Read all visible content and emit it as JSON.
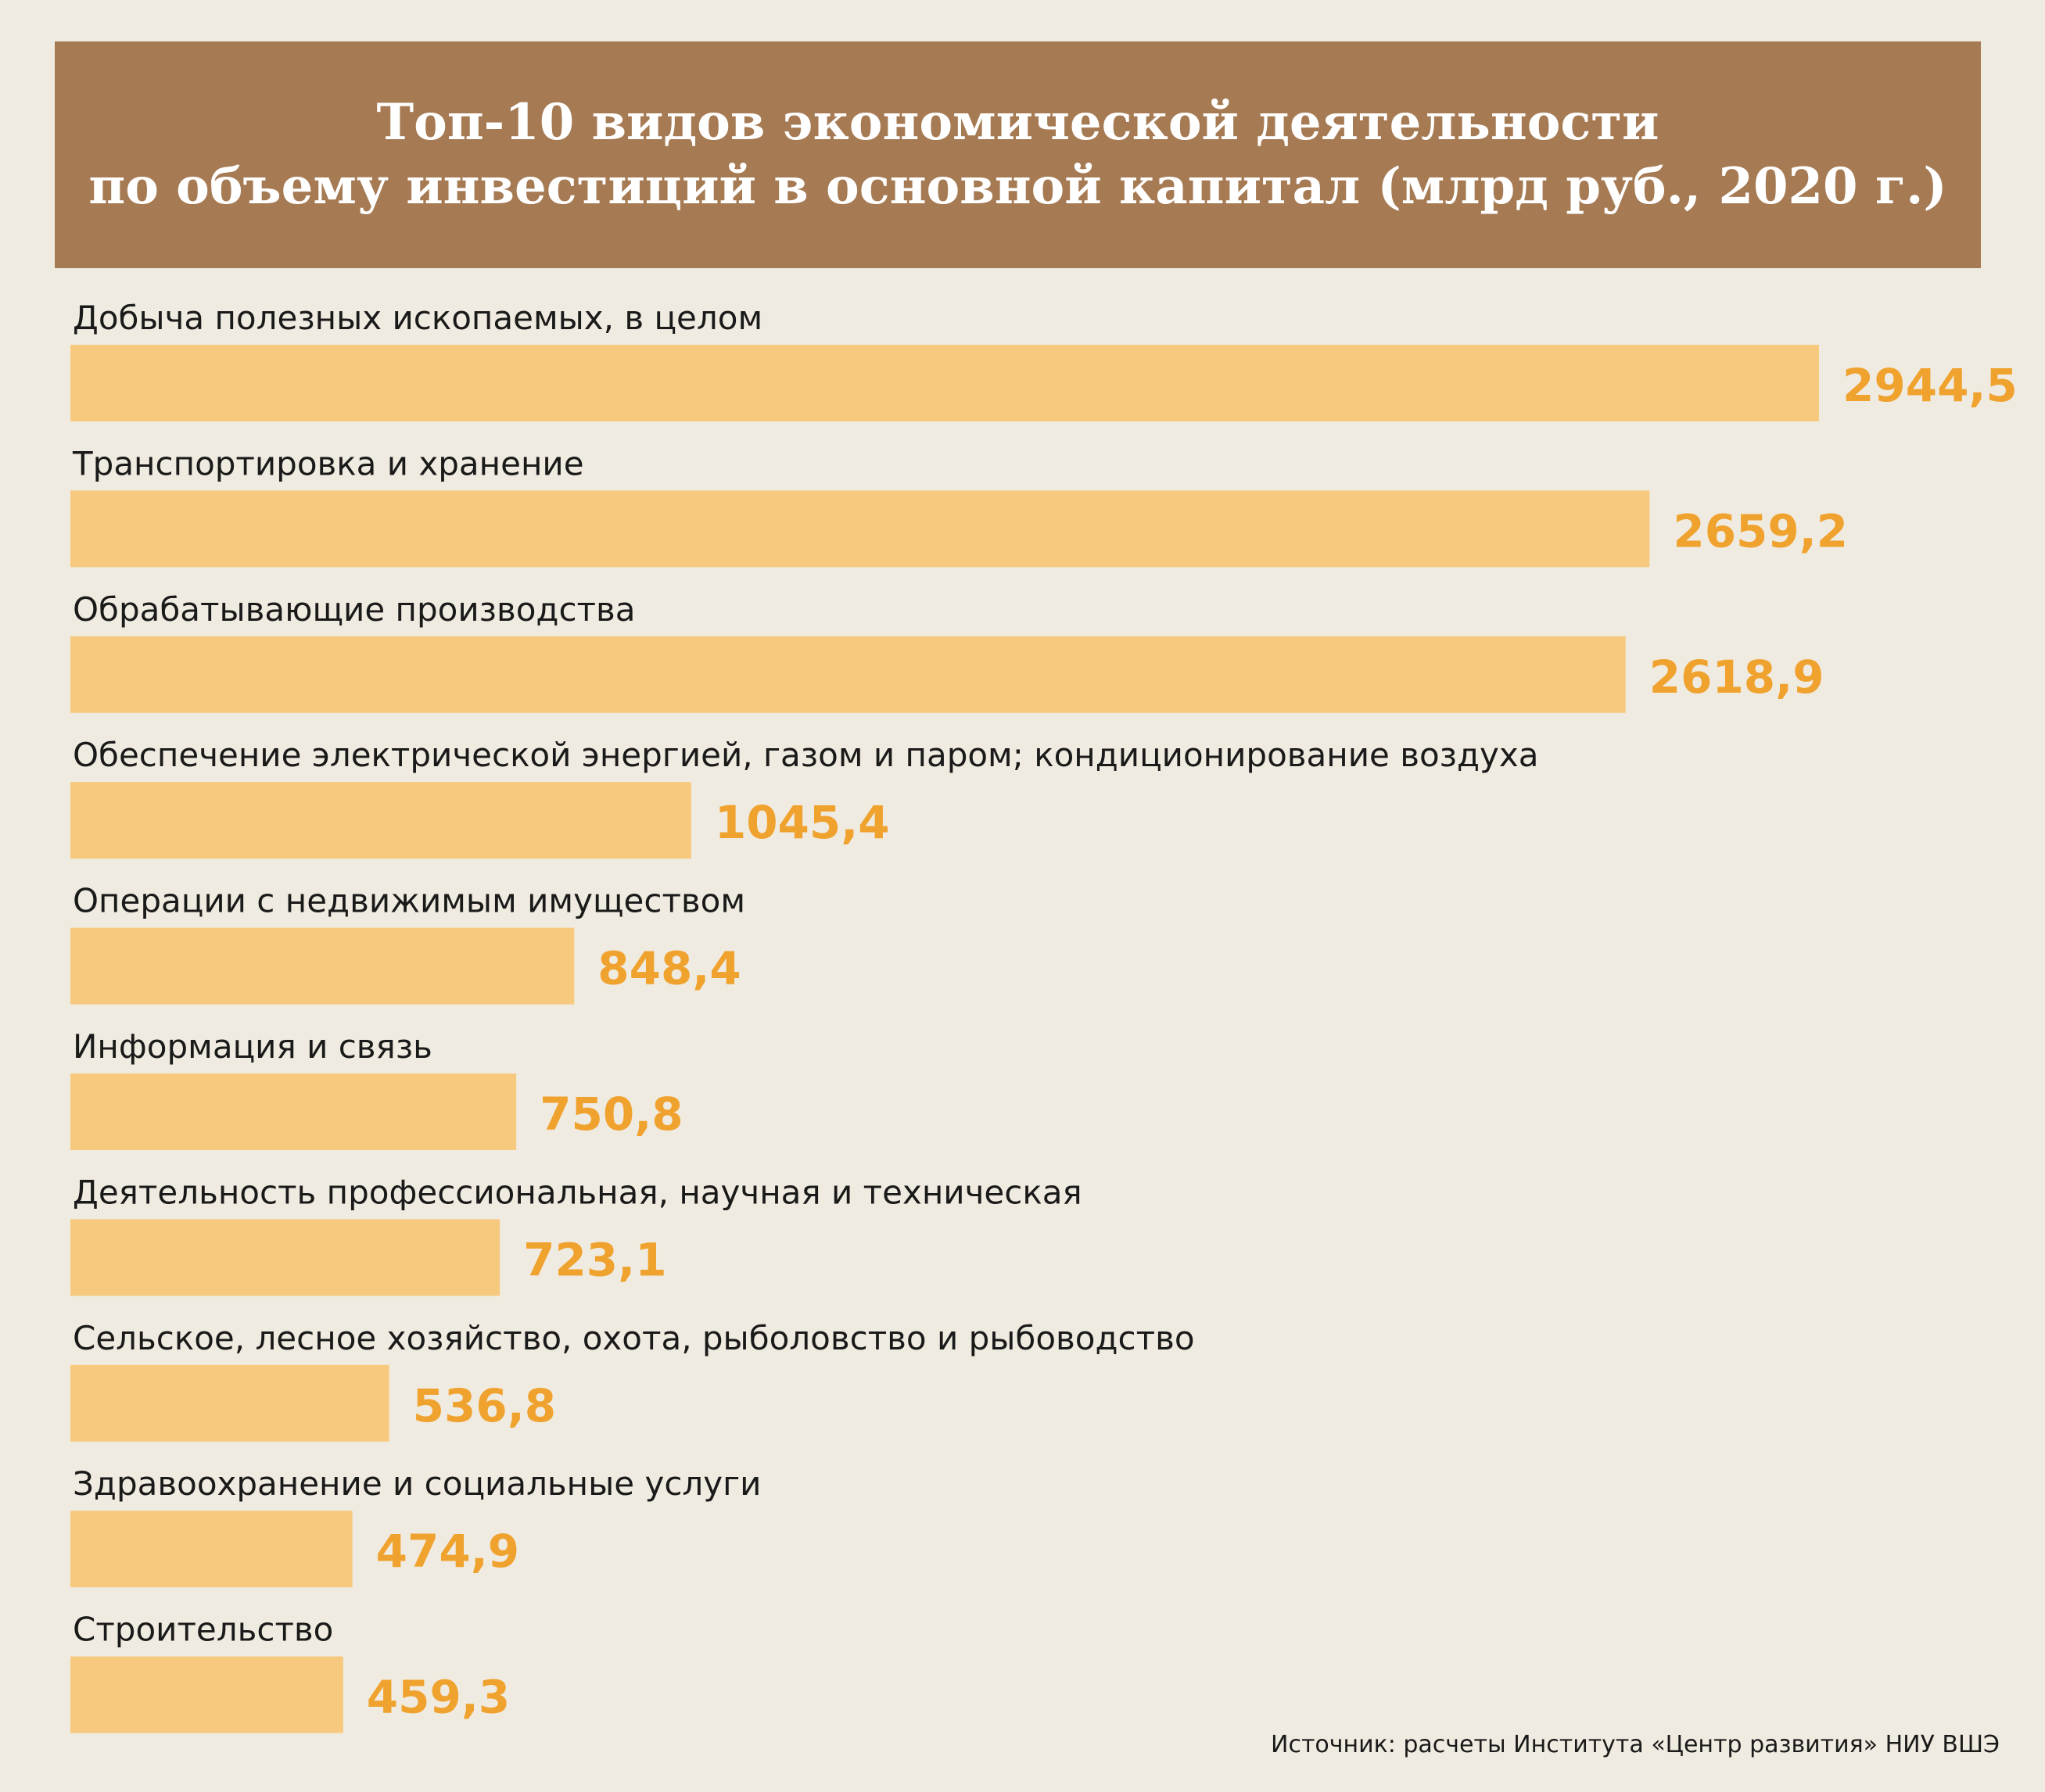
{
  "chart_data": {
    "type": "bar",
    "orientation": "horizontal",
    "title_lines": [
      "Топ-10 видов экономической деятельности",
      "по объему инвестиций в основной капитал (млрд руб., 2020 г.)"
    ],
    "categories": [
      "Добыча полезных ископаемых, в целом",
      "Транспортировка и хранение",
      "Обрабатывающие производства",
      "Обеспечение электрической энергией, газом и паром; кондиционирование воздуха",
      "Операции с недвижимым имуществом",
      "Информация и связь",
      "Деятельность профессиональная, научная и техническая",
      "Сельское, лесное хозяйство, охота, рыболовство и рыбоводство",
      "Здравоохранение и социальные услуги",
      "Строительство"
    ],
    "values": [
      2944.5,
      2659.2,
      2618.9,
      1045.4,
      848.4,
      750.8,
      723.1,
      536.8,
      474.9,
      459.3
    ],
    "value_labels": [
      "2944,5",
      "2659,2",
      "2618,9",
      "1045,4",
      "848,4",
      "750,8",
      "723,1",
      "536,8",
      "474,9",
      "459,3"
    ],
    "grid": false,
    "legend": "none",
    "colors": {
      "bar": "#f7c97e",
      "value_text": "#f0a22e",
      "header_bg": "#a67b54",
      "background": "#f0ebe0"
    }
  },
  "source": "Источник: расчеты Института «Центр развития» НИУ ВШЭ"
}
